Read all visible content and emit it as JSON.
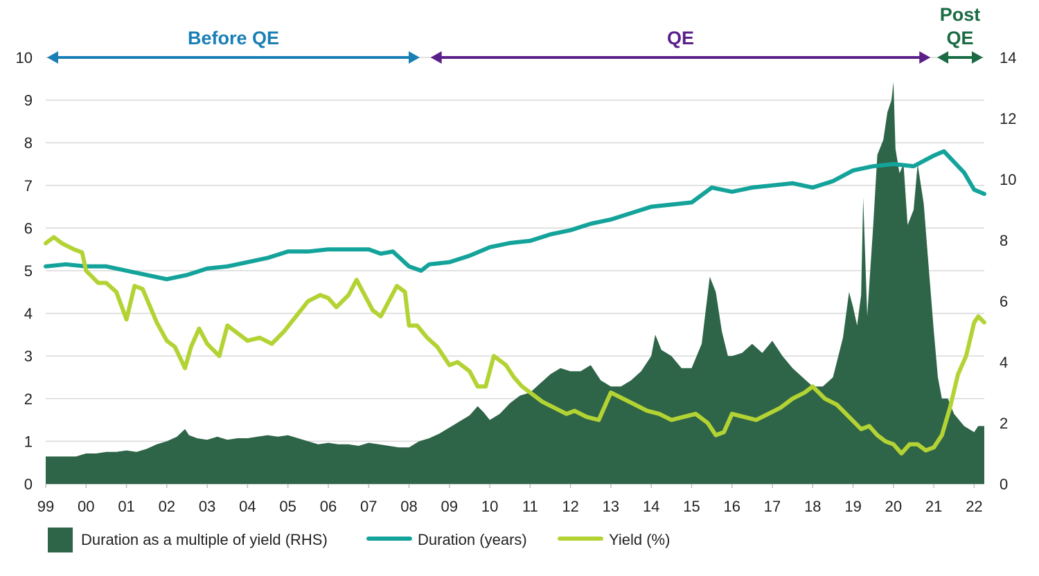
{
  "chart_data": {
    "type": "line",
    "title": "",
    "x_axis": {
      "tick_labels": [
        "99",
        "00",
        "01",
        "02",
        "03",
        "04",
        "05",
        "06",
        "07",
        "08",
        "09",
        "10",
        "11",
        "12",
        "13",
        "14",
        "15",
        "16",
        "17",
        "18",
        "19",
        "20",
        "21",
        "22"
      ],
      "range": [
        1999.0,
        2022.25
      ]
    },
    "y_left": {
      "range": [
        0,
        10
      ],
      "ticks": [
        0,
        1,
        2,
        3,
        4,
        5,
        6,
        7,
        8,
        9,
        10
      ]
    },
    "y_right": {
      "range": [
        0,
        14
      ],
      "ticks": [
        0,
        2,
        4,
        6,
        8,
        10,
        12,
        14
      ]
    },
    "grid": true,
    "legend_position": "bottom",
    "periods": [
      {
        "label": "Before QE",
        "color": "#1a7fb5",
        "start": 1999.0,
        "end": 2008.3,
        "lines": [
          "Before QE"
        ]
      },
      {
        "label": "QE",
        "color": "#5b1f8a",
        "start": 2008.5,
        "end": 2020.95,
        "lines": [
          "QE"
        ]
      },
      {
        "label": "Post QE",
        "color": "#1a6b43",
        "start": 2021.05,
        "end": 2022.25,
        "lines": [
          "Post",
          "QE"
        ]
      }
    ],
    "series": [
      {
        "name": "Duration as a multiple of yield (RHS)",
        "type": "area",
        "axis": "right",
        "color": "#2e6447",
        "x": [
          1999.0,
          1999.25,
          1999.5,
          1999.75,
          2000.0,
          2000.25,
          2000.5,
          2000.75,
          2001.0,
          2001.25,
          2001.5,
          2001.75,
          2002.0,
          2002.25,
          2002.45,
          2002.55,
          2002.75,
          2003.0,
          2003.25,
          2003.5,
          2003.75,
          2004.0,
          2004.25,
          2004.5,
          2004.75,
          2005.0,
          2005.25,
          2005.5,
          2005.75,
          2006.0,
          2006.25,
          2006.5,
          2006.75,
          2007.0,
          2007.25,
          2007.5,
          2007.75,
          2008.0,
          2008.25,
          2008.5,
          2008.75,
          2009.0,
          2009.25,
          2009.5,
          2009.7,
          2009.85,
          2010.0,
          2010.25,
          2010.5,
          2010.75,
          2011.0,
          2011.25,
          2011.5,
          2011.75,
          2012.0,
          2012.25,
          2012.5,
          2012.75,
          2013.0,
          2013.25,
          2013.5,
          2013.75,
          2014.0,
          2014.1,
          2014.25,
          2014.5,
          2014.75,
          2015.0,
          2015.25,
          2015.45,
          2015.6,
          2015.75,
          2015.9,
          2016.0,
          2016.25,
          2016.5,
          2016.75,
          2017.0,
          2017.25,
          2017.5,
          2017.75,
          2018.0,
          2018.25,
          2018.5,
          2018.75,
          2018.9,
          2019.0,
          2019.1,
          2019.2,
          2019.25,
          2019.35,
          2019.5,
          2019.6,
          2019.75,
          2019.85,
          2019.95,
          2020.0,
          2020.05,
          2020.15,
          2020.25,
          2020.35,
          2020.5,
          2020.6,
          2020.75,
          2020.85,
          2021.0,
          2021.1,
          2021.2,
          2021.35,
          2021.5,
          2021.75,
          2022.0,
          2022.1,
          2022.25
        ],
        "values": [
          0.9,
          0.9,
          0.9,
          0.9,
          1.0,
          1.0,
          1.05,
          1.05,
          1.1,
          1.05,
          1.15,
          1.3,
          1.4,
          1.55,
          1.8,
          1.6,
          1.5,
          1.45,
          1.55,
          1.45,
          1.5,
          1.5,
          1.55,
          1.6,
          1.55,
          1.6,
          1.5,
          1.4,
          1.3,
          1.35,
          1.3,
          1.3,
          1.25,
          1.35,
          1.3,
          1.25,
          1.2,
          1.2,
          1.4,
          1.5,
          1.65,
          1.85,
          2.05,
          2.25,
          2.55,
          2.35,
          2.1,
          2.3,
          2.65,
          2.9,
          3.0,
          3.3,
          3.6,
          3.8,
          3.7,
          3.7,
          3.9,
          3.4,
          3.2,
          3.2,
          3.4,
          3.7,
          4.2,
          4.9,
          4.4,
          4.2,
          3.8,
          3.8,
          4.6,
          6.8,
          6.3,
          5.0,
          4.2,
          4.2,
          4.3,
          4.6,
          4.3,
          4.7,
          4.2,
          3.8,
          3.5,
          3.2,
          3.2,
          3.5,
          4.8,
          6.3,
          5.8,
          5.2,
          6.2,
          9.4,
          5.5,
          8.5,
          10.8,
          11.3,
          12.2,
          12.6,
          13.2,
          11.0,
          10.2,
          10.5,
          8.5,
          9.0,
          10.5,
          9.2,
          7.5,
          5.0,
          3.5,
          2.8,
          2.8,
          2.3,
          1.9,
          1.7,
          1.9,
          1.9
        ]
      },
      {
        "name": "Duration (years)",
        "type": "line",
        "axis": "left",
        "color": "#14a39a",
        "x": [
          1999.0,
          1999.5,
          2000.0,
          2000.5,
          2001.0,
          2001.5,
          2002.0,
          2002.5,
          2003.0,
          2003.5,
          2004.0,
          2004.5,
          2005.0,
          2005.5,
          2006.0,
          2006.5,
          2007.0,
          2007.3,
          2007.6,
          2008.0,
          2008.3,
          2008.5,
          2009.0,
          2009.5,
          2010.0,
          2010.5,
          2011.0,
          2011.5,
          2012.0,
          2012.5,
          2013.0,
          2013.5,
          2014.0,
          2014.5,
          2015.0,
          2015.5,
          2016.0,
          2016.5,
          2017.0,
          2017.5,
          2018.0,
          2018.5,
          2019.0,
          2019.5,
          2020.0,
          2020.5,
          2021.0,
          2021.25,
          2021.5,
          2021.75,
          2022.0,
          2022.25
        ],
        "values": [
          5.1,
          5.15,
          5.1,
          5.1,
          5.0,
          4.9,
          4.8,
          4.9,
          5.05,
          5.1,
          5.2,
          5.3,
          5.45,
          5.45,
          5.5,
          5.5,
          5.5,
          5.4,
          5.45,
          5.1,
          5.0,
          5.15,
          5.2,
          5.35,
          5.55,
          5.65,
          5.7,
          5.85,
          5.95,
          6.1,
          6.2,
          6.35,
          6.5,
          6.55,
          6.6,
          6.95,
          6.85,
          6.95,
          7.0,
          7.05,
          6.95,
          7.1,
          7.35,
          7.45,
          7.5,
          7.45,
          7.7,
          7.8,
          7.55,
          7.3,
          6.9,
          6.8
        ]
      },
      {
        "name": "Yield (%)",
        "type": "line",
        "axis": "right",
        "color": "#b3d334",
        "x": [
          1999.0,
          1999.2,
          1999.4,
          1999.7,
          1999.9,
          2000.0,
          2000.3,
          2000.5,
          2000.75,
          2001.0,
          2001.2,
          2001.4,
          2001.75,
          2002.0,
          2002.2,
          2002.45,
          2002.6,
          2002.8,
          2003.0,
          2003.3,
          2003.5,
          2003.8,
          2004.0,
          2004.3,
          2004.6,
          2004.9,
          2005.2,
          2005.5,
          2005.8,
          2006.0,
          2006.2,
          2006.5,
          2006.7,
          2006.9,
          2007.1,
          2007.3,
          2007.5,
          2007.7,
          2007.9,
          2008.0,
          2008.2,
          2008.45,
          2008.7,
          2009.0,
          2009.2,
          2009.5,
          2009.7,
          2009.9,
          2010.1,
          2010.4,
          2010.6,
          2010.8,
          2011.0,
          2011.3,
          2011.6,
          2011.9,
          2012.1,
          2012.4,
          2012.7,
          2013.0,
          2013.3,
          2013.6,
          2013.9,
          2014.2,
          2014.5,
          2014.8,
          2015.1,
          2015.4,
          2015.6,
          2015.8,
          2016.0,
          2016.3,
          2016.6,
          2016.9,
          2017.2,
          2017.5,
          2017.8,
          2018.0,
          2018.3,
          2018.6,
          2018.9,
          2019.2,
          2019.4,
          2019.6,
          2019.8,
          2020.0,
          2020.2,
          2020.4,
          2020.6,
          2020.8,
          2021.0,
          2021.2,
          2021.4,
          2021.6,
          2021.8,
          2022.0,
          2022.1,
          2022.25
        ],
        "values": [
          7.9,
          8.1,
          7.9,
          7.7,
          7.6,
          7.0,
          6.6,
          6.6,
          6.3,
          5.4,
          6.5,
          6.4,
          5.3,
          4.7,
          4.5,
          3.8,
          4.5,
          5.1,
          4.6,
          4.2,
          5.2,
          4.9,
          4.7,
          4.8,
          4.6,
          5.0,
          5.5,
          6.0,
          6.2,
          6.1,
          5.8,
          6.2,
          6.7,
          6.2,
          5.7,
          5.5,
          6.0,
          6.5,
          6.3,
          5.2,
          5.2,
          4.8,
          4.5,
          3.9,
          4.0,
          3.7,
          3.2,
          3.2,
          4.2,
          3.9,
          3.5,
          3.2,
          3.0,
          2.7,
          2.5,
          2.3,
          2.4,
          2.2,
          2.1,
          3.0,
          2.8,
          2.6,
          2.4,
          2.3,
          2.1,
          2.2,
          2.3,
          2.0,
          1.6,
          1.7,
          2.3,
          2.2,
          2.1,
          2.3,
          2.5,
          2.8,
          3.0,
          3.2,
          2.8,
          2.6,
          2.2,
          1.8,
          1.9,
          1.6,
          1.4,
          1.3,
          1.0,
          1.3,
          1.3,
          1.1,
          1.2,
          1.6,
          2.5,
          3.6,
          4.2,
          5.3,
          5.5,
          5.3
        ]
      }
    ]
  },
  "legend": [
    {
      "label": "Duration as a multiple of yield (RHS)",
      "color": "#2e6447",
      "kind": "box"
    },
    {
      "label": "Duration (years)",
      "color": "#14a39a",
      "kind": "line"
    },
    {
      "label": "Yield (%)",
      "color": "#b3d334",
      "kind": "line"
    }
  ]
}
